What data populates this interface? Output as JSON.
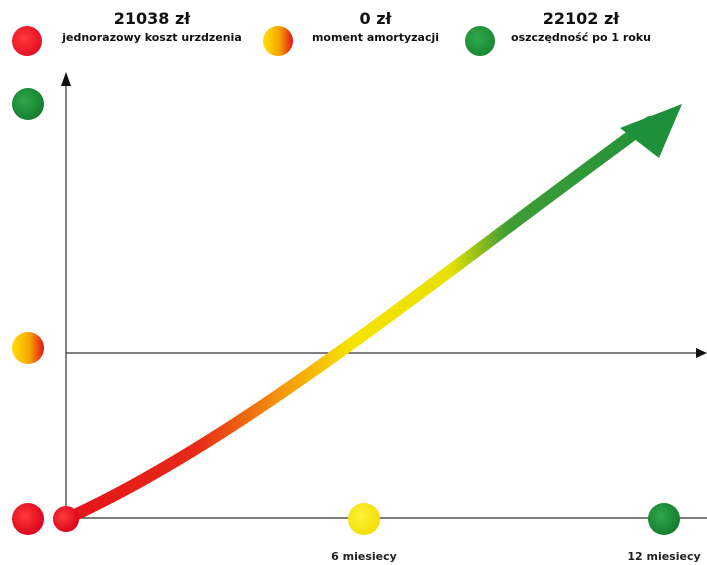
{
  "legend": [
    {
      "value": "21038 zł",
      "label": "jednorazowy koszt urzdzenia",
      "marker": "red"
    },
    {
      "value": "0 zł",
      "label": "moment amortyzacji",
      "marker": "orange"
    },
    {
      "value": "22102 zł",
      "label": "oszczędność po 1 roku",
      "marker": "green"
    }
  ],
  "x_ticks": [
    "6 miesiecy",
    "12 miesiecy"
  ],
  "colors": {
    "red": "#e3131b",
    "yellow": "#f7e300",
    "orange": "#f29200",
    "green": "#1e8f3a",
    "axis": "#333333"
  }
}
